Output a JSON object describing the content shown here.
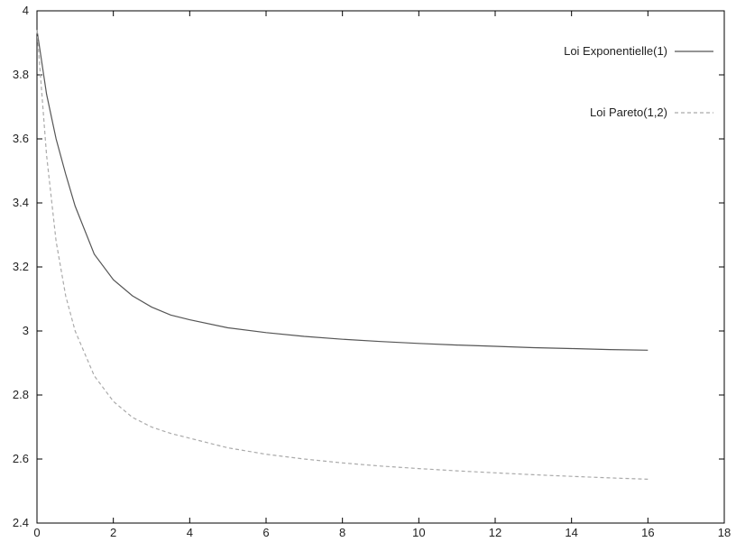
{
  "chart_data": {
    "type": "line",
    "title": "",
    "xlabel": "",
    "ylabel": "",
    "xlim": [
      0,
      18
    ],
    "ylim": [
      2.4,
      4
    ],
    "x_ticks": [
      0,
      2,
      4,
      6,
      8,
      10,
      12,
      14,
      16,
      18
    ],
    "y_ticks": [
      2.4,
      2.6,
      2.8,
      3,
      3.2,
      3.4,
      3.6,
      3.8,
      4
    ],
    "x_tick_labels": [
      "0",
      "2",
      "4",
      "6",
      "8",
      "10",
      "12",
      "14",
      "16",
      "18"
    ],
    "y_tick_labels": [
      "2.4",
      "2.6",
      "2.8",
      "3",
      "3.2",
      "3.4",
      "3.6",
      "3.8",
      "4"
    ],
    "grid": false,
    "legend_position": "top-right",
    "series": [
      {
        "name": "Loi Exponentielle(1)",
        "style": "solid",
        "color": "#555555",
        "x": [
          0,
          0.25,
          0.5,
          0.75,
          1,
          1.5,
          2,
          2.5,
          3,
          3.5,
          4,
          5,
          6,
          7,
          8,
          9,
          10,
          11,
          12,
          13,
          14,
          15,
          16
        ],
        "y": [
          3.94,
          3.74,
          3.6,
          3.49,
          3.39,
          3.24,
          3.16,
          3.11,
          3.075,
          3.05,
          3.035,
          3.01,
          2.995,
          2.983,
          2.974,
          2.967,
          2.961,
          2.956,
          2.952,
          2.948,
          2.945,
          2.942,
          2.94
        ]
      },
      {
        "name": "Loi Pareto(1,2)",
        "style": "dashed",
        "color": "#aaaaaa",
        "x": [
          0,
          0.25,
          0.5,
          0.75,
          1,
          1.5,
          2,
          2.5,
          3,
          3.5,
          4,
          5,
          6,
          7,
          8,
          9,
          10,
          11,
          12,
          13,
          14,
          15,
          16
        ],
        "y": [
          3.94,
          3.55,
          3.28,
          3.11,
          3.0,
          2.86,
          2.78,
          2.73,
          2.7,
          2.68,
          2.665,
          2.635,
          2.615,
          2.6,
          2.588,
          2.578,
          2.57,
          2.563,
          2.557,
          2.551,
          2.546,
          2.541,
          2.537
        ]
      }
    ]
  }
}
